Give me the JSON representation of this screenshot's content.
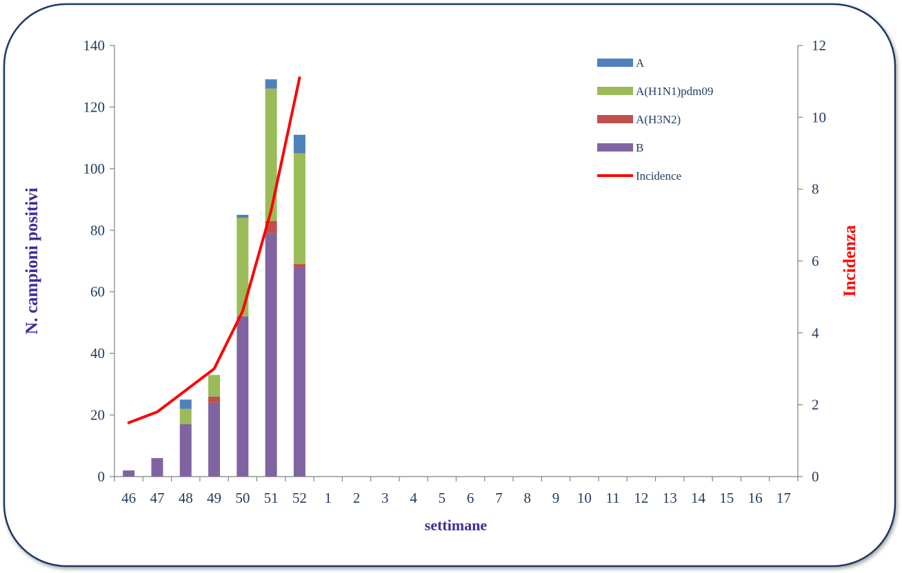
{
  "chart_data": {
    "type": "bar",
    "stacked": true,
    "categories": [
      "46",
      "47",
      "48",
      "49",
      "50",
      "51",
      "52",
      "1",
      "2",
      "3",
      "4",
      "5",
      "6",
      "7",
      "8",
      "9",
      "10",
      "11",
      "12",
      "13",
      "14",
      "15",
      "16",
      "17"
    ],
    "series": [
      {
        "name": "B",
        "color": "#8064a2",
        "values": [
          2,
          6,
          17,
          24,
          52,
          79,
          68,
          0,
          0,
          0,
          0,
          0,
          0,
          0,
          0,
          0,
          0,
          0,
          0,
          0,
          0,
          0,
          0,
          0
        ]
      },
      {
        "name": "A(H3N2)",
        "color": "#c0504d",
        "values": [
          0,
          0,
          0,
          2,
          0,
          4,
          1,
          0,
          0,
          0,
          0,
          0,
          0,
          0,
          0,
          0,
          0,
          0,
          0,
          0,
          0,
          0,
          0,
          0
        ]
      },
      {
        "name": "A(H1N1)pdm09",
        "color": "#9bbb59",
        "values": [
          0,
          0,
          5,
          7,
          32,
          43,
          36,
          0,
          0,
          0,
          0,
          0,
          0,
          0,
          0,
          0,
          0,
          0,
          0,
          0,
          0,
          0,
          0,
          0
        ]
      },
      {
        "name": "A",
        "color": "#4f81bd",
        "values": [
          0,
          0,
          3,
          0,
          1,
          3,
          6,
          0,
          0,
          0,
          0,
          0,
          0,
          0,
          0,
          0,
          0,
          0,
          0,
          0,
          0,
          0,
          0,
          0
        ]
      }
    ],
    "line_series": {
      "name": "Incidence",
      "color": "#ff0000",
      "axis": "right",
      "values": [
        1.5,
        1.8,
        2.4,
        3.0,
        4.6,
        7.4,
        11.1
      ]
    },
    "legend_order": [
      "A",
      "A(H1N1)pdm09",
      "A(H3N2)",
      "B",
      "Incidence"
    ],
    "legend_position": "top-right",
    "xlabel": "settimane",
    "ylabel": "N. campioni positivi",
    "y2label": "Incidenza",
    "ylim": [
      0,
      140
    ],
    "y2lim": [
      0,
      12
    ],
    "yticks": [
      0,
      20,
      40,
      60,
      80,
      100,
      120,
      140
    ],
    "y2ticks": [
      0,
      2,
      4,
      6,
      8,
      10,
      12
    ],
    "grid": false
  }
}
